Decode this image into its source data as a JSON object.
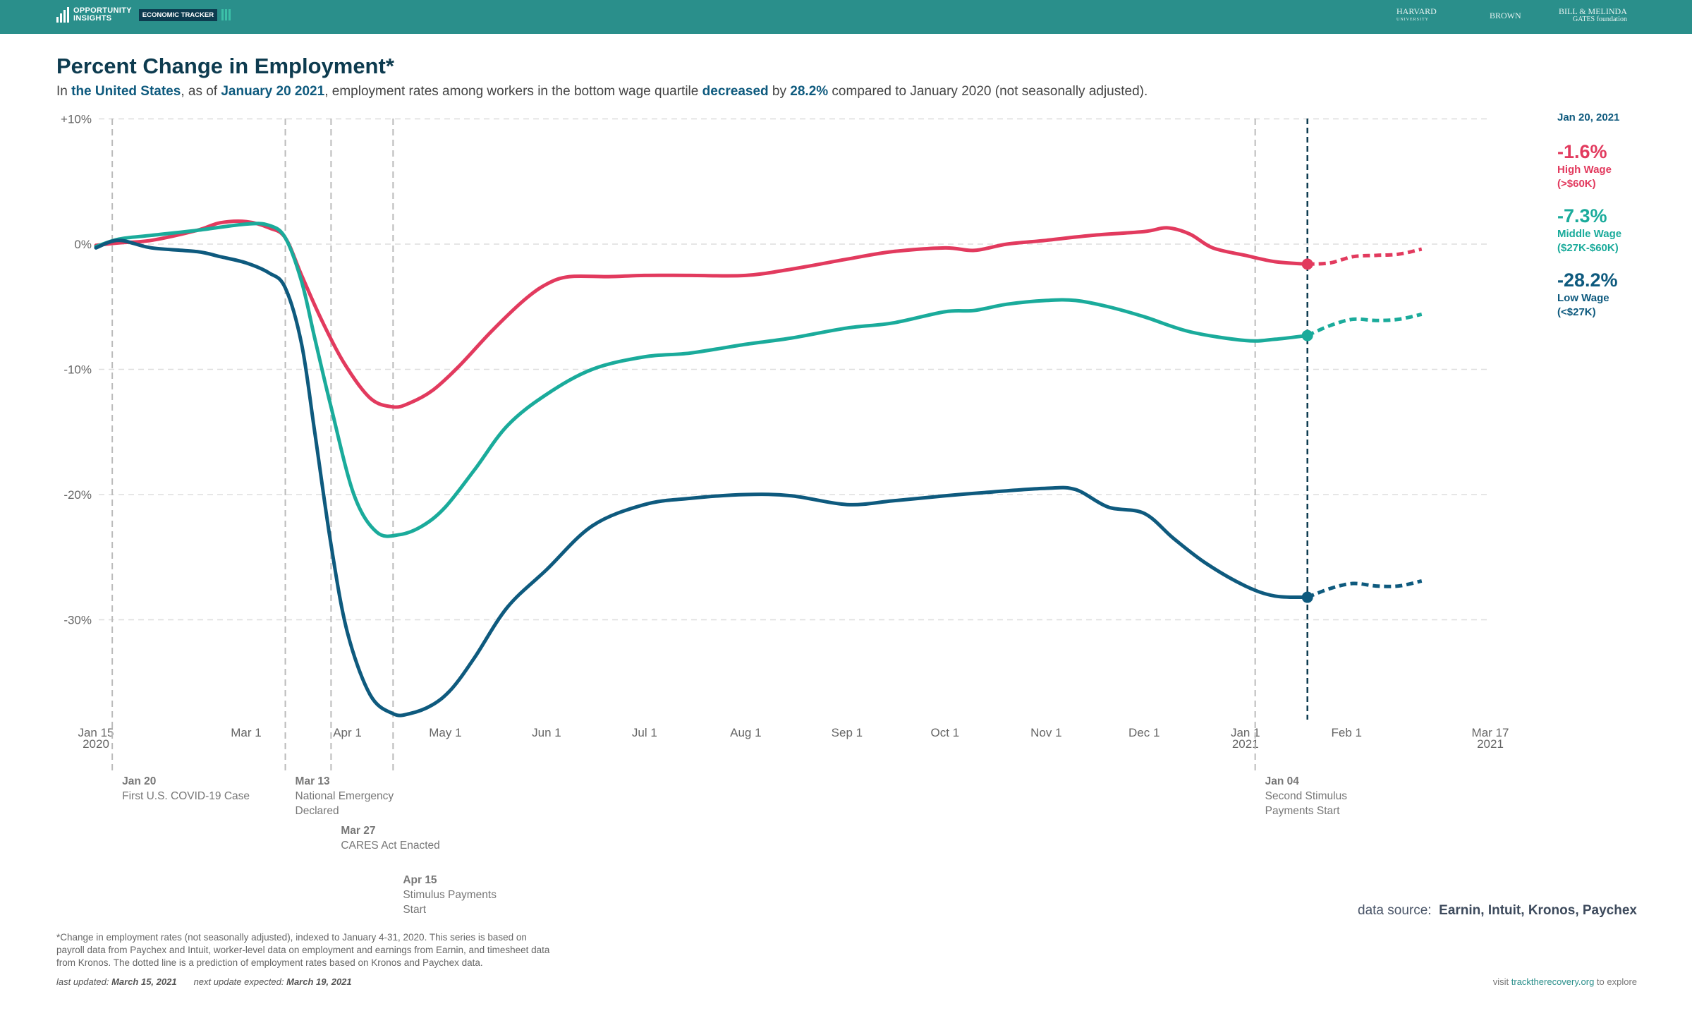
{
  "header": {
    "brand_line1": "OPPORTUNITY",
    "brand_line2": "INSIGHTS",
    "badge": "ECONOMIC TRACKER",
    "partners": [
      {
        "name": "HARVARD",
        "sub": "UNIVERSITY"
      },
      {
        "name": "BROWN",
        "sub": ""
      },
      {
        "name": "BILL & MELINDA",
        "sub": "GATES foundation"
      }
    ],
    "color": "#2a8f8b"
  },
  "title": "Percent Change in Employment*",
  "subtitle": {
    "p1": "In ",
    "place": "the United States",
    "p2": ", as of ",
    "date": "January 20 2021",
    "p3": ", employment rates among workers in the bottom wage quartile ",
    "direction": "decreased",
    "p4": " by ",
    "value": "28.2%",
    "p5": " compared to January 2020 (not seasonally adjusted)."
  },
  "side_panel": {
    "date": "Jan 20, 2021",
    "items": [
      {
        "pct": "-1.6%",
        "label1": "High Wage",
        "label2": "(>$60K)",
        "color": "#e23a5e"
      },
      {
        "pct": "-7.3%",
        "label1": "Middle Wage",
        "label2": "($27K-$60K)",
        "color": "#1aab9b"
      },
      {
        "pct": "-28.2%",
        "label1": "Low Wage",
        "label2": "(<$27K)",
        "color": "#0e5a7e"
      }
    ]
  },
  "chart_data": {
    "type": "line",
    "title": "Percent Change in Employment*",
    "xlim": [
      "2020-01-15",
      "2021-03-17"
    ],
    "ylim": [
      -37.5,
      10
    ],
    "grid": true,
    "y_ticks": [
      {
        "v": 10,
        "label": "+10%"
      },
      {
        "v": 0,
        "label": "0%"
      },
      {
        "v": -10,
        "label": "-10%"
      },
      {
        "v": -20,
        "label": "-20%"
      },
      {
        "v": -30,
        "label": "-30%"
      }
    ],
    "x_ticks": [
      {
        "d": "2020-01-15",
        "label": "Jan 15",
        "label2": "2020"
      },
      {
        "d": "2020-03-01",
        "label": "Mar 1"
      },
      {
        "d": "2020-04-01",
        "label": "Apr 1"
      },
      {
        "d": "2020-05-01",
        "label": "May 1"
      },
      {
        "d": "2020-06-01",
        "label": "Jun 1"
      },
      {
        "d": "2020-07-01",
        "label": "Jul 1"
      },
      {
        "d": "2020-08-01",
        "label": "Aug 1"
      },
      {
        "d": "2020-09-01",
        "label": "Sep 1"
      },
      {
        "d": "2020-10-01",
        "label": "Oct 1"
      },
      {
        "d": "2020-11-01",
        "label": "Nov 1"
      },
      {
        "d": "2020-12-01",
        "label": "Dec 1"
      },
      {
        "d": "2021-01-01",
        "label": "Jan 1",
        "label2": "2021"
      },
      {
        "d": "2021-02-01",
        "label": "Feb 1"
      },
      {
        "d": "2021-03-17",
        "label": "Mar 17",
        "label2": "2021"
      }
    ],
    "highlight_date": "2021-01-20",
    "events": [
      {
        "d": "2020-01-20",
        "date": "Jan 20",
        "text": [
          "First U.S. COVID-19 Case"
        ]
      },
      {
        "d": "2020-03-13",
        "date": "Mar 13",
        "text": [
          "National Emergency",
          "Declared"
        ]
      },
      {
        "d": "2020-03-27",
        "date": "Mar 27",
        "text": [
          "CARES Act Enacted"
        ]
      },
      {
        "d": "2020-04-15",
        "date": "Apr 15",
        "text": [
          "Stimulus Payments",
          "Start"
        ]
      },
      {
        "d": "2021-01-04",
        "date": "Jan 04",
        "text": [
          "Second Stimulus",
          "Payments Start"
        ]
      }
    ],
    "series": [
      {
        "name": "High Wage",
        "color": "#e23a5e",
        "values": [
          [
            "2020-01-15",
            -0.1
          ],
          [
            "2020-01-22",
            0.1
          ],
          [
            "2020-02-01",
            0.3
          ],
          [
            "2020-02-15",
            1.1
          ],
          [
            "2020-02-22",
            1.7
          ],
          [
            "2020-03-01",
            1.8
          ],
          [
            "2020-03-08",
            1.3
          ],
          [
            "2020-03-13",
            0.5
          ],
          [
            "2020-03-18",
            -2.5
          ],
          [
            "2020-03-24",
            -6
          ],
          [
            "2020-03-31",
            -9.5
          ],
          [
            "2020-04-08",
            -12.3
          ],
          [
            "2020-04-15",
            -13
          ],
          [
            "2020-04-20",
            -12.7
          ],
          [
            "2020-04-27",
            -11.7
          ],
          [
            "2020-05-05",
            -9.8
          ],
          [
            "2020-05-15",
            -7
          ],
          [
            "2020-05-25",
            -4.5
          ],
          [
            "2020-06-01",
            -3.2
          ],
          [
            "2020-06-08",
            -2.6
          ],
          [
            "2020-06-20",
            -2.6
          ],
          [
            "2020-07-01",
            -2.5
          ],
          [
            "2020-07-15",
            -2.5
          ],
          [
            "2020-08-01",
            -2.5
          ],
          [
            "2020-08-15",
            -2
          ],
          [
            "2020-09-01",
            -1.2
          ],
          [
            "2020-09-15",
            -0.6
          ],
          [
            "2020-10-01",
            -0.3
          ],
          [
            "2020-10-10",
            -0.5
          ],
          [
            "2020-10-20",
            0
          ],
          [
            "2020-11-01",
            0.3
          ],
          [
            "2020-11-15",
            0.7
          ],
          [
            "2020-12-01",
            1
          ],
          [
            "2020-12-08",
            1.3
          ],
          [
            "2020-12-15",
            0.8
          ],
          [
            "2020-12-22",
            -0.3
          ],
          [
            "2021-01-01",
            -0.9
          ],
          [
            "2021-01-10",
            -1.4
          ],
          [
            "2021-01-20",
            -1.6
          ]
        ],
        "prediction": [
          [
            "2021-01-20",
            -1.6
          ],
          [
            "2021-01-27",
            -1.5
          ],
          [
            "2021-02-03",
            -1
          ],
          [
            "2021-02-10",
            -0.9
          ],
          [
            "2021-02-17",
            -0.8
          ],
          [
            "2021-02-24",
            -0.4
          ]
        ]
      },
      {
        "name": "Middle Wage",
        "color": "#1aab9b",
        "values": [
          [
            "2020-01-15",
            -0.2
          ],
          [
            "2020-01-22",
            0.4
          ],
          [
            "2020-02-01",
            0.7
          ],
          [
            "2020-02-15",
            1.1
          ],
          [
            "2020-03-01",
            1.6
          ],
          [
            "2020-03-08",
            1.5
          ],
          [
            "2020-03-13",
            0.5
          ],
          [
            "2020-03-18",
            -3
          ],
          [
            "2020-03-22",
            -7.5
          ],
          [
            "2020-03-27",
            -13
          ],
          [
            "2020-04-03",
            -20
          ],
          [
            "2020-04-10",
            -23
          ],
          [
            "2020-04-17",
            -23.2
          ],
          [
            "2020-04-24",
            -22.5
          ],
          [
            "2020-05-01",
            -21
          ],
          [
            "2020-05-10",
            -18
          ],
          [
            "2020-05-20",
            -14.5
          ],
          [
            "2020-06-01",
            -12
          ],
          [
            "2020-06-15",
            -10
          ],
          [
            "2020-07-01",
            -9
          ],
          [
            "2020-07-15",
            -8.7
          ],
          [
            "2020-08-01",
            -8
          ],
          [
            "2020-08-15",
            -7.5
          ],
          [
            "2020-09-01",
            -6.7
          ],
          [
            "2020-09-15",
            -6.3
          ],
          [
            "2020-10-01",
            -5.4
          ],
          [
            "2020-10-10",
            -5.3
          ],
          [
            "2020-10-20",
            -4.8
          ],
          [
            "2020-11-01",
            -4.5
          ],
          [
            "2020-11-10",
            -4.5
          ],
          [
            "2020-11-20",
            -5
          ],
          [
            "2020-12-01",
            -5.8
          ],
          [
            "2020-12-15",
            -7
          ],
          [
            "2021-01-01",
            -7.7
          ],
          [
            "2021-01-10",
            -7.6
          ],
          [
            "2021-01-20",
            -7.3
          ]
        ],
        "prediction": [
          [
            "2021-01-20",
            -7.3
          ],
          [
            "2021-01-27",
            -6.5
          ],
          [
            "2021-02-03",
            -6
          ],
          [
            "2021-02-10",
            -6.1
          ],
          [
            "2021-02-17",
            -6
          ],
          [
            "2021-02-24",
            -5.6
          ]
        ]
      },
      {
        "name": "Low Wage",
        "color": "#0e5a7e",
        "values": [
          [
            "2020-01-15",
            -0.3
          ],
          [
            "2020-01-22",
            0.3
          ],
          [
            "2020-02-01",
            -0.3
          ],
          [
            "2020-02-15",
            -0.6
          ],
          [
            "2020-02-22",
            -1
          ],
          [
            "2020-03-01",
            -1.5
          ],
          [
            "2020-03-08",
            -2.3
          ],
          [
            "2020-03-13",
            -3.5
          ],
          [
            "2020-03-18",
            -8
          ],
          [
            "2020-03-22",
            -15
          ],
          [
            "2020-03-27",
            -24
          ],
          [
            "2020-04-01",
            -31
          ],
          [
            "2020-04-08",
            -36
          ],
          [
            "2020-04-15",
            -37.5
          ],
          [
            "2020-04-20",
            -37.5
          ],
          [
            "2020-04-27",
            -36.8
          ],
          [
            "2020-05-03",
            -35.5
          ],
          [
            "2020-05-10",
            -33
          ],
          [
            "2020-05-20",
            -29
          ],
          [
            "2020-06-01",
            -26
          ],
          [
            "2020-06-15",
            -22.5
          ],
          [
            "2020-07-01",
            -20.8
          ],
          [
            "2020-07-15",
            -20.3
          ],
          [
            "2020-08-01",
            -20
          ],
          [
            "2020-08-15",
            -20.1
          ],
          [
            "2020-09-01",
            -20.8
          ],
          [
            "2020-09-15",
            -20.5
          ],
          [
            "2020-10-01",
            -20.1
          ],
          [
            "2020-10-15",
            -19.8
          ],
          [
            "2020-11-01",
            -19.5
          ],
          [
            "2020-11-10",
            -19.6
          ],
          [
            "2020-11-20",
            -21
          ],
          [
            "2020-12-01",
            -21.5
          ],
          [
            "2020-12-10",
            -23.5
          ],
          [
            "2020-12-20",
            -25.5
          ],
          [
            "2021-01-01",
            -27.3
          ],
          [
            "2021-01-10",
            -28.1
          ],
          [
            "2021-01-20",
            -28.2
          ]
        ],
        "prediction": [
          [
            "2021-01-20",
            -28.2
          ],
          [
            "2021-01-27",
            -27.5
          ],
          [
            "2021-02-03",
            -27.1
          ],
          [
            "2021-02-10",
            -27.3
          ],
          [
            "2021-02-17",
            -27.3
          ],
          [
            "2021-02-24",
            -26.9
          ]
        ]
      }
    ]
  },
  "footnote": "*Change in employment rates (not seasonally adjusted), indexed to January 4-31, 2020. This series is based on payroll data from Paychex and Intuit, worker-level data on employment and earnings from Earnin, and timesheet data from Kronos. The dotted line is a prediction of employment rates based on Kronos and Paychex data.",
  "updates": {
    "last_label": "last updated: ",
    "last": "March 15, 2021",
    "next_label": "next update expected: ",
    "next": "March 19, 2021"
  },
  "source": {
    "label": "data source:",
    "value": "Earnin, Intuit, Kronos, Paychex"
  },
  "visit": {
    "pre": "visit ",
    "link": "tracktherecovery.org",
    "post": " to explore"
  }
}
